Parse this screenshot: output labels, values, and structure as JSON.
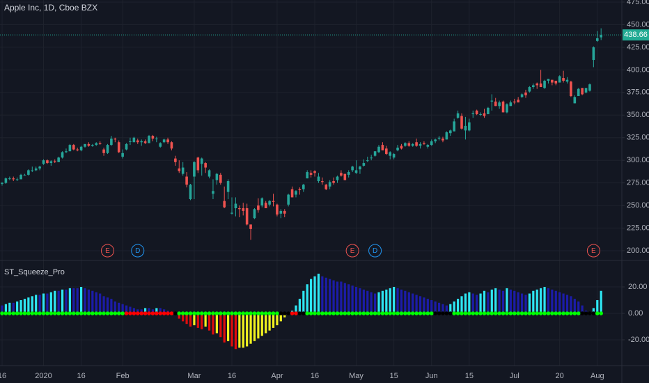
{
  "chart_data": [
    {
      "type": "candlestick",
      "title": "Apple Inc, 1D, Cboe BZX",
      "open": [
        274,
        275,
        280,
        280,
        279,
        279,
        284,
        284,
        289,
        289,
        291,
        296,
        300,
        297,
        299,
        298,
        303,
        309,
        310,
        317,
        312,
        311,
        315,
        318,
        316,
        317,
        319,
        312,
        308,
        317,
        324,
        320,
        304,
        312,
        321,
        320,
        322,
        320,
        321,
        319,
        327,
        324,
        315,
        320,
        323,
        320,
        302,
        291,
        285,
        282,
        257,
        282,
        303,
        296,
        297,
        282,
        263,
        278,
        284,
        255,
        265,
        241,
        247,
        247,
        247,
        247,
        229,
        236,
        250,
        250,
        253,
        251,
        255,
        251,
        241,
        244,
        251,
        268,
        262,
        268,
        268,
        280,
        286,
        288,
        277,
        277,
        273,
        271,
        277,
        278,
        286,
        285,
        284,
        289,
        286,
        290,
        294,
        300,
        303,
        305,
        309,
        317,
        313,
        305,
        303,
        311,
        316,
        316,
        319,
        316,
        320,
        316,
        319,
        315,
        317,
        321,
        324,
        324,
        323,
        330,
        332,
        347,
        349,
        333,
        333,
        351,
        355,
        351,
        352,
        351,
        365,
        365,
        360,
        365,
        353,
        360,
        365,
        367,
        370,
        375,
        376,
        381,
        385,
        385,
        380,
        388,
        389,
        388,
        386,
        391,
        387,
        387,
        363,
        371,
        380,
        375,
        377,
        411,
        432,
        436
      ],
      "high": [
        276,
        281,
        282,
        282,
        281,
        285,
        285,
        290,
        293,
        293,
        294,
        301,
        301,
        300,
        301,
        304,
        310,
        313,
        318,
        318,
        314,
        316,
        318,
        320,
        318,
        320,
        321,
        314,
        318,
        327,
        325,
        322,
        312,
        319,
        325,
        326,
        324,
        323,
        323,
        328,
        328,
        326,
        320,
        324,
        325,
        321,
        305,
        300,
        298,
        287,
        274,
        299,
        304,
        303,
        298,
        290,
        279,
        286,
        286,
        271,
        279,
        259,
        259,
        250,
        253,
        252,
        229,
        247,
        258,
        259,
        255,
        256,
        263,
        252,
        246,
        246,
        263,
        271,
        267,
        270,
        274,
        289,
        289,
        289,
        286,
        281,
        274,
        278,
        281,
        283,
        289,
        285,
        289,
        294,
        300,
        294,
        301,
        304,
        306,
        310,
        317,
        320,
        316,
        310,
        308,
        317,
        318,
        320,
        321,
        319,
        324,
        320,
        321,
        318,
        323,
        324,
        327,
        326,
        332,
        334,
        346,
        355,
        352,
        348,
        346,
        355,
        356,
        353,
        357,
        359,
        373,
        369,
        366,
        366,
        363,
        366,
        368,
        370,
        374,
        378,
        382,
        385,
        386,
        400,
        389,
        390,
        389,
        388,
        394,
        399,
        392,
        388,
        372,
        380,
        380,
        380,
        385,
        426,
        443,
        446
      ],
      "low": [
        272,
        274,
        278,
        277,
        277,
        279,
        283,
        283,
        287,
        288,
        289,
        295,
        296,
        294,
        297,
        298,
        302,
        308,
        310,
        311,
        310,
        310,
        314,
        315,
        315,
        316,
        317,
        305,
        307,
        316,
        320,
        308,
        302,
        311,
        317,
        320,
        318,
        316,
        318,
        319,
        321,
        320,
        314,
        319,
        318,
        311,
        294,
        286,
        283,
        270,
        256,
        257,
        286,
        283,
        286,
        280,
        257,
        273,
        273,
        247,
        257,
        240,
        238,
        237,
        239,
        228,
        212,
        235,
        242,
        248,
        247,
        249,
        249,
        238,
        236,
        237,
        249,
        259,
        259,
        262,
        265,
        280,
        281,
        282,
        275,
        273,
        267,
        268,
        273,
        275,
        282,
        278,
        281,
        287,
        285,
        285,
        293,
        298,
        300,
        304,
        308,
        311,
        306,
        301,
        301,
        310,
        312,
        315,
        315,
        315,
        315,
        313,
        317,
        313,
        316,
        319,
        322,
        320,
        323,
        327,
        332,
        346,
        334,
        323,
        332,
        347,
        350,
        349,
        347,
        351,
        355,
        360,
        357,
        353,
        352,
        360,
        362,
        364,
        369,
        369,
        375,
        379,
        379,
        381,
        379,
        385,
        383,
        383,
        386,
        386,
        385,
        370,
        363,
        371,
        372,
        374,
        376,
        403,
        431,
        433
      ],
      "close": [
        275,
        280,
        280,
        279,
        279,
        284,
        284,
        289,
        289,
        291,
        293,
        300,
        297,
        299,
        298,
        303,
        309,
        310,
        317,
        312,
        311,
        315,
        318,
        316,
        317,
        319,
        318,
        308,
        317,
        324,
        323,
        309,
        308,
        318,
        321,
        325,
        320,
        321,
        319,
        327,
        324,
        324,
        319,
        323,
        320,
        313,
        298,
        288,
        292,
        273,
        273,
        298,
        289,
        302,
        292,
        289,
        266,
        285,
        275,
        248,
        277,
        242,
        252,
        246,
        244,
        229,
        224,
        246,
        245,
        258,
        247,
        255,
        254,
        240,
        244,
        241,
        262,
        259,
        266,
        267,
        273,
        287,
        284,
        286,
        282,
        276,
        268,
        276,
        275,
        282,
        283,
        278,
        287,
        293,
        289,
        293,
        297,
        300,
        303,
        310,
        315,
        311,
        307,
        309,
        307,
        314,
        313,
        319,
        316,
        318,
        316,
        318,
        318,
        317,
        321,
        323,
        325,
        322,
        331,
        333,
        343,
        352,
        335,
        338,
        342,
        352,
        351,
        351,
        349,
        358,
        366,
        360,
        364,
        353,
        362,
        364,
        364,
        364,
        373,
        372,
        381,
        383,
        383,
        381,
        388,
        390,
        386,
        385,
        393,
        388,
        389,
        371,
        370,
        379,
        373,
        380,
        384,
        425,
        435,
        438.66
      ],
      "up_color": "#26a69a",
      "down_color": "#ef5350",
      "ylim": [
        190,
        477.3
      ],
      "yticks": [
        {
          "value": 200,
          "label": "200.00"
        },
        {
          "value": 225,
          "label": "225.00"
        },
        {
          "value": 250,
          "label": "250.00"
        },
        {
          "value": 275,
          "label": "275.00"
        },
        {
          "value": 300,
          "label": "300.00"
        },
        {
          "value": 325,
          "label": "325.00"
        },
        {
          "value": 350,
          "label": "350.00"
        },
        {
          "value": 375,
          "label": "375.00"
        },
        {
          "value": 400,
          "label": "400.00"
        },
        {
          "value": 425,
          "label": "425.00"
        },
        {
          "value": 450,
          "label": "450.00"
        },
        {
          "value": 475,
          "label": "475.00"
        }
      ],
      "last_price": 438.66,
      "last_price_color": "#22ab94",
      "events": [
        {
          "label": "E",
          "index": 28,
          "color": "#ef5350"
        },
        {
          "label": "D",
          "index": 36,
          "color": "#2196f3"
        },
        {
          "label": "E",
          "index": 93,
          "color": "#ef5350"
        },
        {
          "label": "D",
          "index": 99,
          "color": "#2196f3"
        },
        {
          "label": "E",
          "index": 157,
          "color": "#ef5350"
        }
      ],
      "grid": true
    },
    {
      "type": "bar",
      "title": "ST_Squeeze_Pro",
      "categories": [
        "16",
        null,
        null,
        null,
        null,
        null,
        null,
        null,
        null,
        null,
        null,
        "2020",
        null,
        null,
        null,
        null,
        null,
        null,
        null,
        null,
        null,
        "16",
        null,
        null,
        null,
        null,
        null,
        null,
        null,
        null,
        null,
        null,
        "Feb",
        null,
        null,
        null,
        null,
        null,
        null,
        null,
        null,
        null,
        null,
        null,
        null,
        null,
        null,
        null,
        null,
        null,
        null,
        "Mar",
        null,
        null,
        null,
        null,
        null,
        null,
        null,
        null,
        null,
        "16",
        null,
        null,
        null,
        null,
        null,
        null,
        null,
        null,
        null,
        null,
        null,
        "Apr",
        null,
        null,
        null,
        null,
        null,
        null,
        null,
        null,
        null,
        "16",
        null,
        null,
        null,
        null,
        null,
        null,
        null,
        null,
        null,
        null,
        "May",
        null,
        null,
        null,
        null,
        null,
        null,
        null,
        null,
        null,
        "15",
        null,
        null,
        null,
        null,
        null,
        null,
        null,
        null,
        null,
        "Jun",
        null,
        null,
        null,
        null,
        null,
        null,
        null,
        null,
        null,
        "15",
        null,
        null,
        null,
        null,
        null,
        null,
        null,
        null,
        null,
        null,
        null,
        "Jul",
        null,
        null,
        null,
        null,
        null,
        null,
        null,
        null,
        null,
        null,
        null,
        "20",
        null,
        null,
        null,
        null,
        null,
        null,
        null,
        null,
        null,
        "Aug",
        null
      ],
      "values": [
        6,
        7,
        8,
        8,
        9,
        10,
        11,
        12,
        13,
        14,
        14,
        15,
        15,
        16,
        17,
        17,
        18,
        18,
        19,
        19,
        19,
        20,
        19,
        18,
        17,
        16,
        15,
        13,
        12,
        11,
        9,
        8,
        7,
        6,
        5,
        4,
        3,
        3,
        4,
        4,
        3,
        4,
        4,
        3,
        2,
        1,
        -1,
        -4,
        -6,
        -8,
        -10,
        -9,
        -11,
        -12,
        -10,
        -13,
        -16,
        -15,
        -18,
        -22,
        -21,
        -25,
        -27,
        -26,
        -26,
        -25,
        -23,
        -21,
        -19,
        -17,
        -15,
        -13,
        -11,
        -9,
        -6,
        -3,
        -1,
        2,
        6,
        11,
        17,
        22,
        26,
        28,
        30,
        28,
        27,
        26,
        25,
        24,
        24,
        23,
        22,
        21,
        20,
        19,
        18,
        17,
        16,
        15,
        16,
        17,
        18,
        19,
        20,
        19,
        18,
        17,
        16,
        15,
        14,
        13,
        12,
        11,
        10,
        9,
        8,
        7,
        6,
        7,
        9,
        11,
        13,
        15,
        16,
        15,
        14,
        15,
        17,
        16,
        18,
        19,
        18,
        17,
        19,
        18,
        17,
        16,
        15,
        14,
        15,
        17,
        18,
        19,
        20,
        19,
        18,
        17,
        16,
        15,
        14,
        13,
        11,
        9,
        6,
        2,
        1,
        4,
        10,
        17
      ],
      "colors": {
        "rising_positive": "#2ee6f2",
        "falling_positive": "#1c1ca8",
        "falling_negative": "#e00d0d",
        "rising_negative": "#f0f020"
      },
      "squeeze_dots": [
        "lime",
        "lime",
        "lime",
        "lime",
        "lime",
        "lime",
        "lime",
        "lime",
        "lime",
        "lime",
        "lime",
        "lime",
        "lime",
        "lime",
        "lime",
        "lime",
        "lime",
        "lime",
        "lime",
        "lime",
        "lime",
        "lime",
        "lime",
        "lime",
        "lime",
        "lime",
        "lime",
        "lime",
        "lime",
        "lime",
        "lime",
        "lime",
        "lime",
        "red",
        "red",
        "red",
        "red",
        "red",
        "red",
        "red",
        "red",
        "red",
        "red",
        "red",
        "red",
        "red",
        "black",
        "lime",
        "lime",
        "lime",
        "lime",
        "lime",
        "lime",
        "lime",
        "lime",
        "lime",
        "lime",
        "lime",
        "lime",
        "lime",
        "lime",
        "lime",
        "lime",
        "lime",
        "lime",
        "lime",
        "lime",
        "lime",
        "lime",
        "lime",
        "lime",
        "lime",
        "lime",
        "lime",
        "black",
        "black",
        "black",
        "red",
        "red",
        "black",
        "black",
        "lime",
        "lime",
        "lime",
        "lime",
        "lime",
        "lime",
        "lime",
        "lime",
        "lime",
        "lime",
        "lime",
        "lime",
        "lime",
        "lime",
        "lime",
        "lime",
        "lime",
        "lime",
        "lime",
        "lime",
        "lime",
        "lime",
        "lime",
        "lime",
        "lime",
        "lime",
        "lime",
        "lime",
        "lime",
        "lime",
        "lime",
        "lime",
        "lime",
        "lime",
        "black",
        "black",
        "black",
        "black",
        "black",
        "lime",
        "lime",
        "lime",
        "lime",
        "lime",
        "lime",
        "lime",
        "lime",
        "lime",
        "lime",
        "lime",
        "lime",
        "lime",
        "lime",
        "lime",
        "lime",
        "lime",
        "lime",
        "lime",
        "lime",
        "lime",
        "lime",
        "lime",
        "lime",
        "lime",
        "lime",
        "lime",
        "lime",
        "lime",
        "lime",
        "lime",
        "lime",
        "lime",
        "lime",
        "black",
        "black",
        "black",
        "black",
        "lime",
        "lime"
      ],
      "ylim": [
        -39.5,
        39.5
      ],
      "yticks": [
        {
          "value": 20,
          "label": "20.00"
        },
        {
          "value": 0,
          "label": "0.00"
        },
        {
          "value": -20,
          "label": "-20.00"
        }
      ],
      "grid": true
    }
  ]
}
